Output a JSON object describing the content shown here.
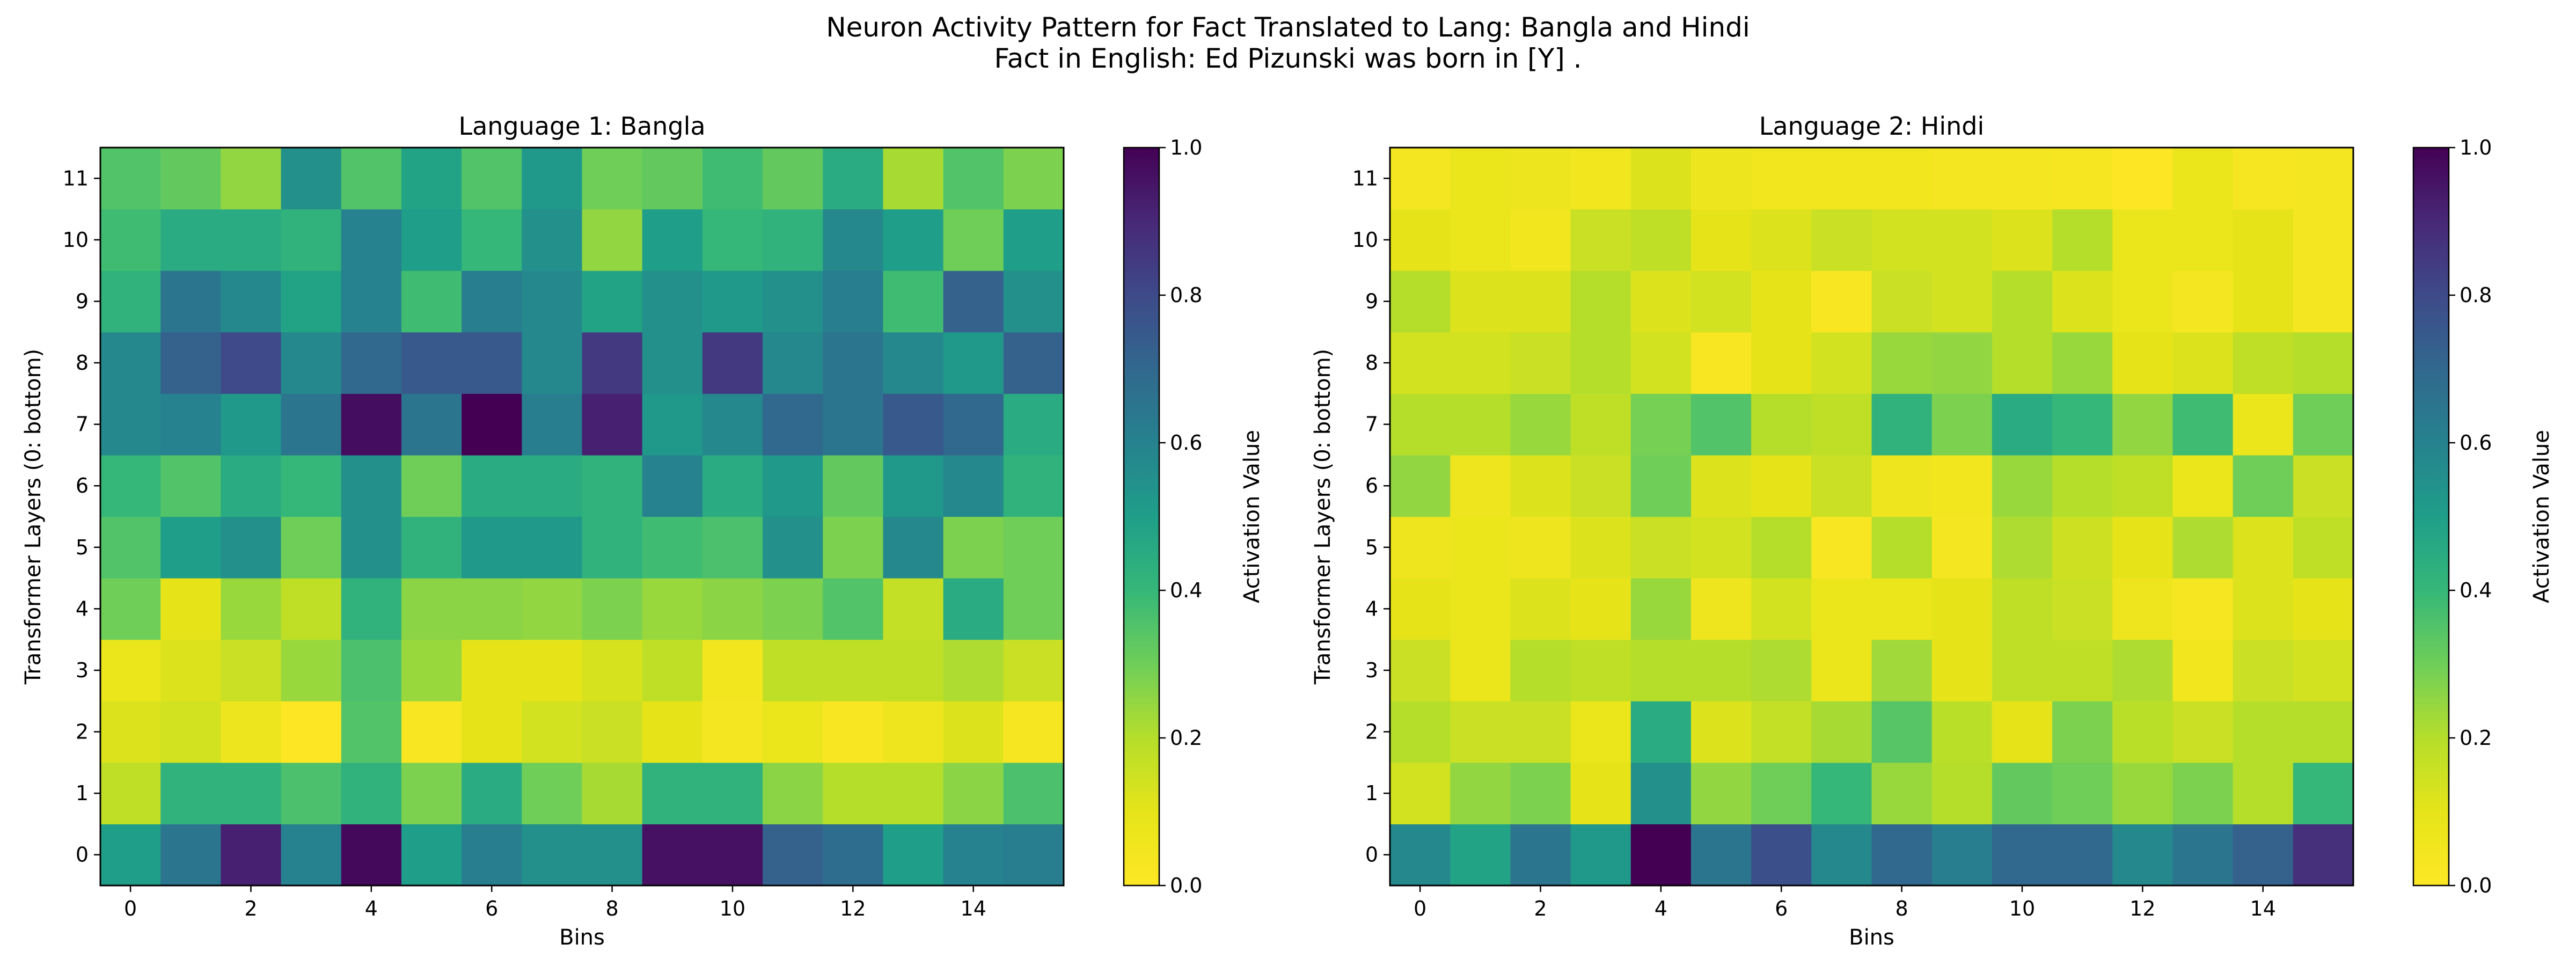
{
  "figure": {
    "title_line1": "Neuron Activity Pattern for Fact Translated to Lang: Bangla and Hindi",
    "title_line2": "Fact in English: Ed Pizunski was born in [Y] ."
  },
  "chart_data": [
    {
      "type": "heatmap",
      "title": "Language 1: Bangla",
      "xlabel": "Bins",
      "ylabel": "Transformer Layers (0: bottom)",
      "x_ticks": [
        0,
        2,
        4,
        6,
        8,
        10,
        12,
        14
      ],
      "y_ticks": [
        0,
        1,
        2,
        3,
        4,
        5,
        6,
        7,
        8,
        9,
        10,
        11
      ],
      "colorbar_label": "Activation Value",
      "colorbar_ticks": [
        "0.0",
        "0.2",
        "0.4",
        "0.6",
        "0.8",
        "1.0"
      ],
      "value_range": [
        0.0,
        1.0
      ],
      "colormap": "viridis_r",
      "rows_layer_0_to_11": [
        [
          0.5,
          0.65,
          0.92,
          0.6,
          0.98,
          0.5,
          0.62,
          0.55,
          0.55,
          0.96,
          0.96,
          0.72,
          0.68,
          0.5,
          0.6,
          0.62
        ],
        [
          0.18,
          0.42,
          0.42,
          0.36,
          0.42,
          0.28,
          0.45,
          0.3,
          0.22,
          0.42,
          0.42,
          0.26,
          0.2,
          0.2,
          0.26,
          0.36
        ],
        [
          0.12,
          0.14,
          0.07,
          0.0,
          0.35,
          0.02,
          0.1,
          0.14,
          0.16,
          0.1,
          0.04,
          0.08,
          0.02,
          0.06,
          0.12,
          0.03
        ],
        [
          0.08,
          0.12,
          0.16,
          0.24,
          0.36,
          0.24,
          0.1,
          0.1,
          0.13,
          0.18,
          0.05,
          0.18,
          0.18,
          0.18,
          0.21,
          0.16
        ],
        [
          0.3,
          0.1,
          0.24,
          0.18,
          0.42,
          0.26,
          0.26,
          0.25,
          0.28,
          0.24,
          0.26,
          0.28,
          0.35,
          0.17,
          0.45,
          0.3
        ],
        [
          0.35,
          0.5,
          0.55,
          0.3,
          0.55,
          0.42,
          0.52,
          0.52,
          0.42,
          0.38,
          0.36,
          0.55,
          0.28,
          0.58,
          0.28,
          0.3
        ],
        [
          0.4,
          0.35,
          0.45,
          0.4,
          0.55,
          0.3,
          0.45,
          0.45,
          0.42,
          0.6,
          0.45,
          0.52,
          0.32,
          0.52,
          0.58,
          0.42
        ],
        [
          0.58,
          0.6,
          0.52,
          0.65,
          0.97,
          0.65,
          1.0,
          0.62,
          0.92,
          0.52,
          0.58,
          0.7,
          0.65,
          0.75,
          0.7,
          0.45
        ],
        [
          0.58,
          0.72,
          0.8,
          0.58,
          0.7,
          0.75,
          0.75,
          0.58,
          0.85,
          0.55,
          0.85,
          0.58,
          0.65,
          0.58,
          0.52,
          0.72
        ],
        [
          0.42,
          0.65,
          0.58,
          0.48,
          0.6,
          0.38,
          0.62,
          0.58,
          0.48,
          0.55,
          0.52,
          0.55,
          0.62,
          0.38,
          0.72,
          0.55
        ],
        [
          0.38,
          0.45,
          0.45,
          0.42,
          0.6,
          0.5,
          0.4,
          0.55,
          0.25,
          0.5,
          0.4,
          0.42,
          0.58,
          0.5,
          0.3,
          0.5
        ],
        [
          0.35,
          0.32,
          0.25,
          0.55,
          0.35,
          0.48,
          0.35,
          0.52,
          0.3,
          0.32,
          0.38,
          0.32,
          0.45,
          0.22,
          0.35,
          0.28
        ]
      ]
    },
    {
      "type": "heatmap",
      "title": "Language 2: Hindi",
      "xlabel": "Bins",
      "ylabel": "Transformer Layers (0: bottom)",
      "x_ticks": [
        0,
        2,
        4,
        6,
        8,
        10,
        12,
        14
      ],
      "y_ticks": [
        0,
        1,
        2,
        3,
        4,
        5,
        6,
        7,
        8,
        9,
        10,
        11
      ],
      "colorbar_label": "Activation Value",
      "colorbar_ticks": [
        "0.0",
        "0.2",
        "0.4",
        "0.6",
        "0.8",
        "1.0"
      ],
      "value_range": [
        0.0,
        1.0
      ],
      "colormap": "viridis_r",
      "rows_layer_0_to_11": [
        [
          0.58,
          0.48,
          0.65,
          0.52,
          1.0,
          0.65,
          0.78,
          0.58,
          0.7,
          0.62,
          0.7,
          0.7,
          0.58,
          0.65,
          0.72,
          0.88
        ],
        [
          0.14,
          0.25,
          0.28,
          0.1,
          0.55,
          0.25,
          0.3,
          0.4,
          0.24,
          0.2,
          0.32,
          0.3,
          0.24,
          0.28,
          0.2,
          0.4
        ],
        [
          0.2,
          0.16,
          0.16,
          0.08,
          0.45,
          0.12,
          0.17,
          0.22,
          0.34,
          0.19,
          0.1,
          0.28,
          0.19,
          0.16,
          0.2,
          0.2
        ],
        [
          0.16,
          0.08,
          0.2,
          0.18,
          0.2,
          0.2,
          0.21,
          0.08,
          0.23,
          0.1,
          0.18,
          0.18,
          0.21,
          0.05,
          0.16,
          0.14
        ],
        [
          0.1,
          0.08,
          0.12,
          0.1,
          0.24,
          0.06,
          0.14,
          0.08,
          0.08,
          0.1,
          0.18,
          0.16,
          0.06,
          0.03,
          0.12,
          0.1
        ],
        [
          0.06,
          0.08,
          0.06,
          0.12,
          0.16,
          0.14,
          0.2,
          0.02,
          0.2,
          0.04,
          0.21,
          0.15,
          0.1,
          0.21,
          0.12,
          0.18
        ],
        [
          0.25,
          0.06,
          0.12,
          0.16,
          0.3,
          0.12,
          0.1,
          0.16,
          0.06,
          0.05,
          0.24,
          0.2,
          0.18,
          0.08,
          0.3,
          0.16
        ],
        [
          0.2,
          0.2,
          0.24,
          0.18,
          0.29,
          0.35,
          0.2,
          0.18,
          0.42,
          0.28,
          0.45,
          0.4,
          0.25,
          0.38,
          0.08,
          0.3
        ],
        [
          0.14,
          0.14,
          0.16,
          0.2,
          0.14,
          0.02,
          0.1,
          0.14,
          0.24,
          0.25,
          0.2,
          0.24,
          0.1,
          0.12,
          0.18,
          0.2
        ],
        [
          0.2,
          0.12,
          0.12,
          0.2,
          0.12,
          0.14,
          0.1,
          0.02,
          0.16,
          0.14,
          0.2,
          0.12,
          0.08,
          0.04,
          0.1,
          0.04
        ],
        [
          0.1,
          0.08,
          0.05,
          0.16,
          0.18,
          0.1,
          0.12,
          0.16,
          0.14,
          0.14,
          0.12,
          0.2,
          0.08,
          0.08,
          0.1,
          0.04
        ],
        [
          0.04,
          0.08,
          0.07,
          0.05,
          0.12,
          0.07,
          0.05,
          0.05,
          0.05,
          0.04,
          0.04,
          0.03,
          0.0,
          0.08,
          0.03,
          0.04
        ]
      ]
    }
  ]
}
